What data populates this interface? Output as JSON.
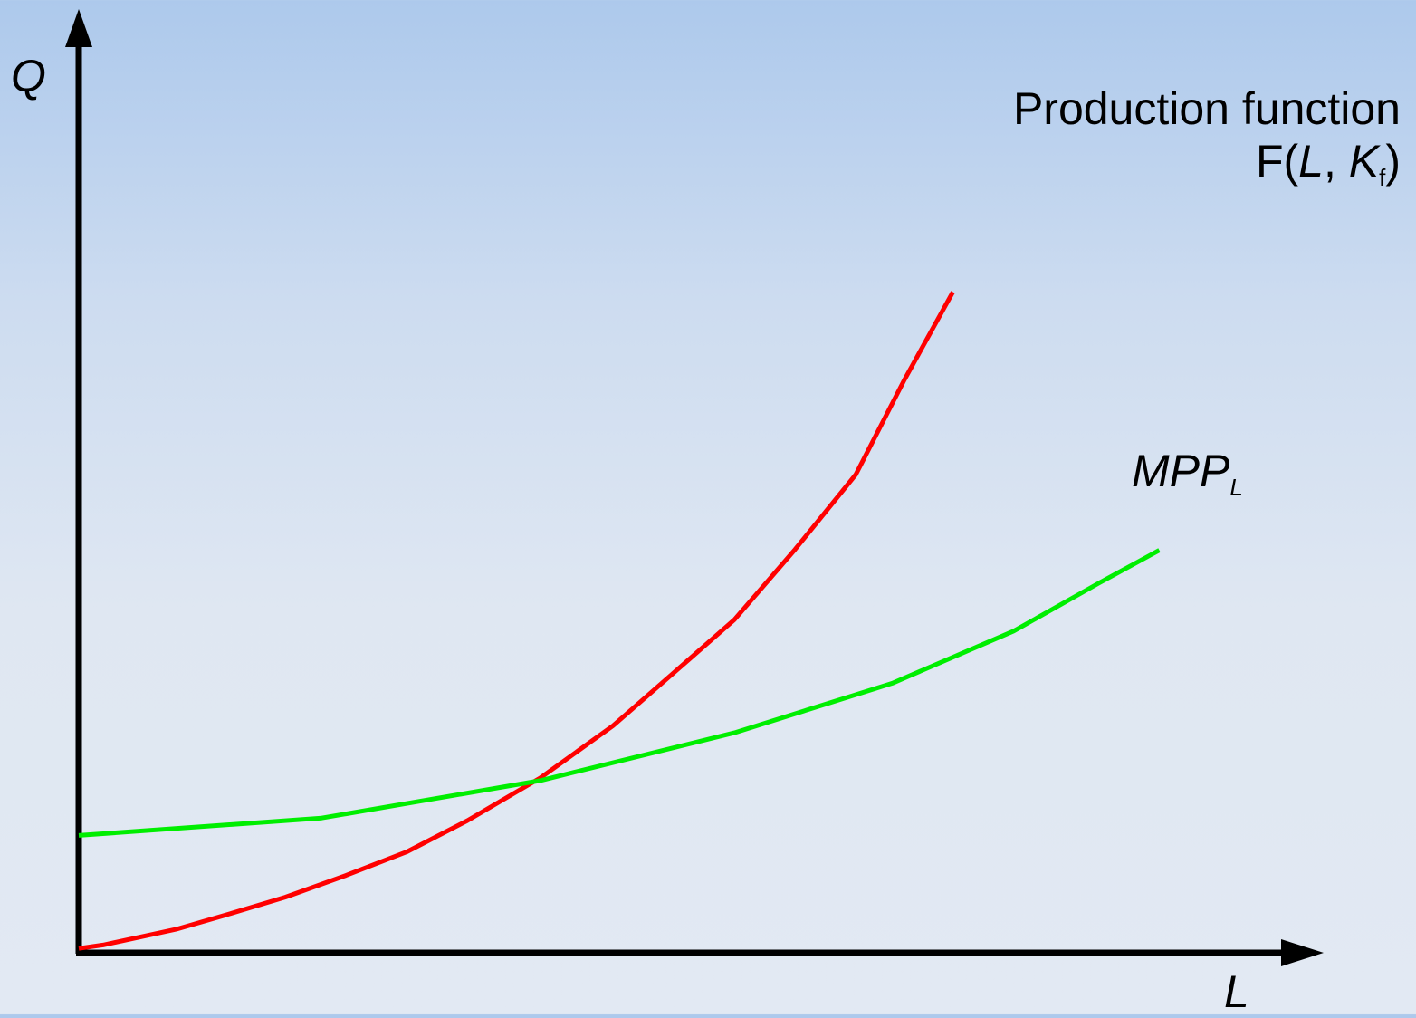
{
  "chart_data": {
    "type": "line",
    "x_axis": {
      "label": "L",
      "ticks": [],
      "range": [
        0,
        100
      ]
    },
    "y_axis": {
      "label": "Q",
      "ticks": [],
      "range": [
        0,
        100
      ]
    },
    "grid": false,
    "legend": "none",
    "series": [
      {
        "name": "Production function F(L, Kf)",
        "label_line1": "Production function",
        "label_line2_prefix": "F(",
        "label_line2_L": "L",
        "label_line2_sep": ", ",
        "label_line2_K": "K",
        "label_line2_sub": "f",
        "label_line2_suffix": ")",
        "color": "#ff0000",
        "points": [
          [
            0,
            0.5
          ],
          [
            2,
            0.9
          ],
          [
            8,
            2.7
          ],
          [
            12,
            4.3
          ],
          [
            17,
            6.4
          ],
          [
            22,
            8.9
          ],
          [
            27,
            11.6
          ],
          [
            32,
            15.2
          ],
          [
            38,
            20.1
          ],
          [
            44,
            26.1
          ],
          [
            49,
            32.2
          ],
          [
            54,
            38.3
          ],
          [
            59,
            46.4
          ],
          [
            64,
            55.0
          ],
          [
            68,
            65.9
          ],
          [
            72,
            76.0
          ]
        ]
      },
      {
        "name": "MPPL",
        "label_main": "MPP",
        "label_sub": "L",
        "color": "#00ee00",
        "points": [
          [
            0,
            13.5
          ],
          [
            20,
            15.5
          ],
          [
            38,
            19.8
          ],
          [
            54,
            25.3
          ],
          [
            67,
            31.0
          ],
          [
            77,
            37.0
          ],
          [
            84,
            42.5
          ],
          [
            89,
            46.3
          ]
        ]
      }
    ]
  }
}
